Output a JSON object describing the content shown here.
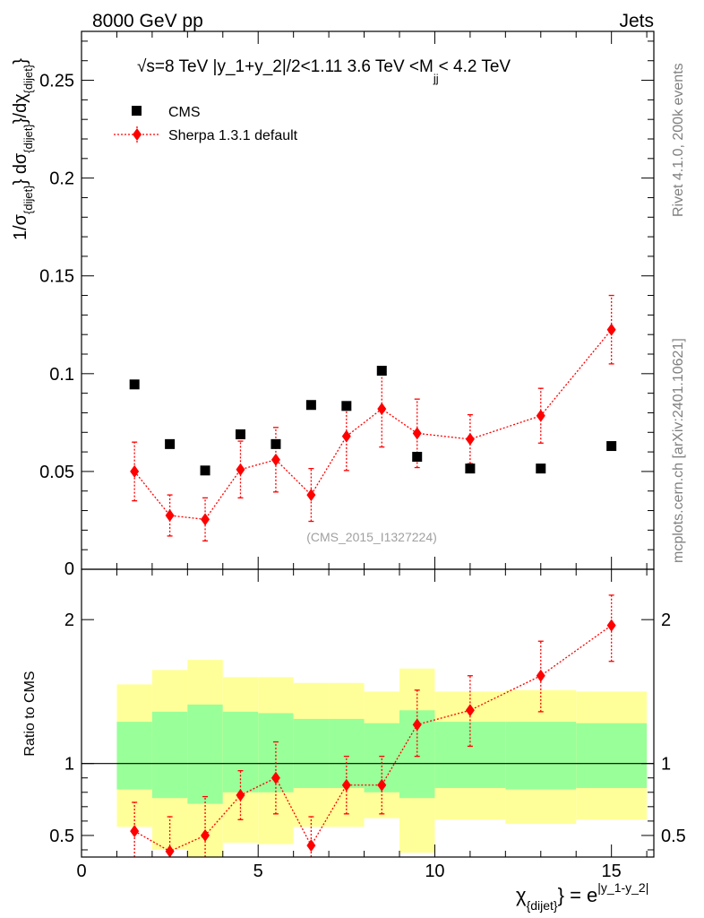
{
  "header": {
    "left_label": "8000 GeV pp",
    "right_label": "Jets"
  },
  "side_labels": {
    "rivet": "Rivet 4.1.0,  200k events",
    "mcplots": "mcplots.cern.ch [arXiv:2401.10621]"
  },
  "chart_data": [
    {
      "type": "scatter",
      "panel": "main",
      "title": "√s=8 TeV |y_1+y_2|/2<1.11 3.6 TeV <M_jj< 4.2 TeV",
      "title_parts": {
        "prefix": "√s=8 TeV |y_1+y_2|/2<1.11 3.6 TeV <M",
        "subscript": "jj",
        "suffix": "< 4.2 TeV"
      },
      "ylabel": "1/σ_{dijet} dσ_{dijet}/dχ_{dijet}",
      "ylabel_parts": {
        "a": "1/σ",
        "a_sub": "{dijet}",
        "b": "} dσ",
        "b_sub": "{dijet}",
        "c": "}/dχ",
        "c_sub": "{dijet}",
        "d": "}"
      },
      "xlim": [
        0,
        16.2
      ],
      "ylim": [
        0,
        0.275
      ],
      "y_ticks": [
        0.05,
        0.1,
        0.15,
        0.2,
        0.25
      ],
      "y_tick_labels": [
        "0.05",
        "0.1",
        "0.15",
        "0.2",
        "0.25"
      ],
      "y_zero_label": "0",
      "watermark": "(CMS_2015_I1327224)",
      "legend": [
        "CMS",
        "Sherpa 1.3.1 default"
      ],
      "legend_position": "top-left",
      "series": [
        {
          "name": "CMS",
          "marker": "square",
          "color": "#000000",
          "x": [
            1.5,
            2.5,
            3.5,
            4.5,
            5.5,
            6.5,
            7.5,
            8.5,
            9.5,
            11,
            13,
            15
          ],
          "y": [
            0.0945,
            0.064,
            0.0505,
            0.069,
            0.064,
            0.084,
            0.0835,
            0.1015,
            0.0575,
            0.0515,
            0.0515,
            0.063
          ]
        },
        {
          "name": "Sherpa 1.3.1 default",
          "marker": "diamond",
          "color": "#ff0000",
          "x": [
            1.5,
            2.5,
            3.5,
            4.5,
            5.5,
            6.5,
            7.5,
            8.5,
            9.5,
            11,
            13,
            15
          ],
          "y": [
            0.05,
            0.0275,
            0.0255,
            0.051,
            0.056,
            0.038,
            0.068,
            0.082,
            0.0695,
            0.0665,
            0.0785,
            0.1225
          ],
          "yerr": [
            0.015,
            0.0105,
            0.011,
            0.0145,
            0.0165,
            0.0135,
            0.0175,
            0.0195,
            0.0175,
            0.0125,
            0.014,
            0.0175
          ]
        }
      ]
    },
    {
      "type": "scatter",
      "panel": "ratio",
      "ylabel": "Ratio to CMS",
      "xlabel": "χ_{dijet}} = e^{|y_1-y_2|}",
      "xlabel_parts": {
        "chi": "χ",
        "chi_sub": "{dijet}",
        "mid": "} = e",
        "sup": "|y_1-y_2|"
      },
      "xlim": [
        0,
        16.2
      ],
      "ylim": [
        0.35,
        2.35
      ],
      "x_ticks": [
        0,
        5,
        10,
        15
      ],
      "x_tick_labels": [
        "0",
        "5",
        "10",
        "15"
      ],
      "y_ticks": [
        0.5,
        1,
        2
      ],
      "y_tick_labels": [
        "0.5",
        "1",
        "2"
      ],
      "reference_line": 1,
      "bands": {
        "edges": [
          1,
          2,
          3,
          4,
          5,
          6,
          7,
          8,
          9,
          10,
          12,
          14,
          16
        ],
        "inner_color": "#99ff99",
        "outer_color": "#ffff99",
        "inner_lo": [
          0.82,
          0.76,
          0.72,
          0.8,
          0.8,
          0.83,
          0.83,
          0.8,
          0.76,
          0.83,
          0.82,
          0.83
        ],
        "inner_hi": [
          1.29,
          1.36,
          1.41,
          1.36,
          1.35,
          1.31,
          1.31,
          1.28,
          1.37,
          1.29,
          1.29,
          1.28
        ],
        "outer_lo": [
          0.56,
          0.4,
          0.35,
          0.45,
          0.44,
          0.56,
          0.56,
          0.62,
          0.38,
          0.61,
          0.58,
          0.61
        ],
        "outer_hi": [
          1.55,
          1.65,
          1.72,
          1.6,
          1.6,
          1.56,
          1.56,
          1.5,
          1.66,
          1.5,
          1.51,
          1.5
        ]
      },
      "series": [
        {
          "name": "Sherpa 1.3.1 default",
          "color": "#ff0000",
          "x": [
            1.5,
            2.5,
            3.5,
            4.5,
            5.5,
            6.5,
            7.5,
            8.5,
            9.5,
            11,
            13,
            15
          ],
          "y": [
            0.53,
            0.39,
            0.5,
            0.78,
            0.9,
            0.43,
            0.85,
            0.85,
            1.27,
            1.37,
            1.61,
            1.96
          ],
          "yerr_lo": [
            0.2,
            0.24,
            0.27,
            0.17,
            0.25,
            0.2,
            0.2,
            0.2,
            0.22,
            0.25,
            0.25,
            0.25
          ],
          "yerr_hi": [
            0.2,
            0.24,
            0.27,
            0.17,
            0.25,
            0.2,
            0.2,
            0.2,
            0.24,
            0.24,
            0.24,
            0.21
          ]
        }
      ]
    }
  ]
}
